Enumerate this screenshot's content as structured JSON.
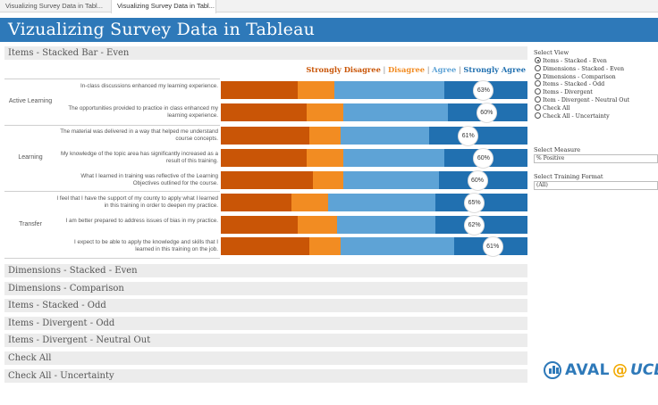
{
  "tabs": [
    {
      "label": "Visualizing Survey Data in Tabl..."
    },
    {
      "label": "Visualizing Survey Data in Tabl..."
    }
  ],
  "dashboard": {
    "title": "Vizualizing Survey Data in Tableau",
    "banner_color": "#2e79b9"
  },
  "sections": {
    "active": "Items - Stacked Bar - Even",
    "collapsed": [
      "Dimensions - Stacked - Even",
      "Dimensions - Comparison",
      "Items - Stacked - Odd",
      "Items - Divergent - Odd",
      "Items - Divergent - Neutral Out",
      "Check All",
      "Check All - Uncertainty"
    ]
  },
  "legend": {
    "separator": "|",
    "items": [
      {
        "label": "Strongly Disagree",
        "color": "#c95506"
      },
      {
        "label": "Disagree",
        "color": "#f28c22"
      },
      {
        "label": "Agree",
        "color": "#5ea3d6"
      },
      {
        "label": "Strongly Agree",
        "color": "#2170b0"
      }
    ]
  },
  "chart_data": {
    "type": "bar",
    "orientation": "horizontal",
    "stacked": true,
    "normalized": true,
    "title": "Items - Stacked Bar - Even",
    "series_names": [
      "Strongly Disagree",
      "Disagree",
      "Agree",
      "Strongly Agree"
    ],
    "groups": [
      {
        "name": "Active Learning",
        "items": [
          {
            "label": "In-class discussions enhanced my learning experience.",
            "values": [
              25,
              12,
              36,
              27
            ],
            "positive_label": "63%"
          },
          {
            "label": "The opportunities provided to practice in class enhanced my learning experience.",
            "values": [
              28,
              12,
              34,
              26
            ],
            "positive_label": "60%"
          }
        ]
      },
      {
        "name": "Learning",
        "items": [
          {
            "label": "The material was delivered in a way that helped me understand course concepts.",
            "values": [
              29,
              10,
              29,
              32
            ],
            "positive_label": "61%"
          },
          {
            "label": "My knowledge of the topic area has significantly increased as a result of this training.",
            "values": [
              28,
              12,
              33,
              27
            ],
            "positive_label": "60%"
          },
          {
            "label": "What I learned in training was reflective of the Learning Objectives outlined for the course.",
            "values": [
              30,
              10,
              31,
              29
            ],
            "positive_label": "60%"
          }
        ]
      },
      {
        "name": "Transfer",
        "items": [
          {
            "label": "I feel that I have the support of my county to apply what I learned in this training in order to deepen my practice.",
            "values": [
              23,
              12,
              35,
              30
            ],
            "positive_label": "65%"
          },
          {
            "label": "I am better prepared to address issues of bias in my practice.",
            "values": [
              25,
              13,
              32,
              30
            ],
            "positive_label": "62%"
          },
          {
            "label": "I expect to be able to apply the knowledge and skills that I learned in this training on the job.",
            "values": [
              29,
              10,
              37,
              24
            ],
            "positive_label": "61%"
          }
        ]
      }
    ]
  },
  "controls": {
    "select_view": {
      "title": "Select View",
      "selected": "Items - Stacked - Even",
      "options": [
        "Items - Stacked - Even",
        "Dimensions - Stacked - Even",
        "Dimensions - Comparison",
        "Items - Stacked - Odd",
        "Items - Divergent",
        "Item - Divergent - Neutral Out",
        "Check All",
        "Check All - Uncertainty"
      ]
    },
    "select_measure": {
      "title": "Select Measure",
      "value": "% Positive"
    },
    "select_training_format": {
      "title": "Select Training Format",
      "value": "(All)"
    }
  },
  "logo": {
    "aval": "AVAL",
    "at": "@",
    "ucla": "UCLA"
  }
}
